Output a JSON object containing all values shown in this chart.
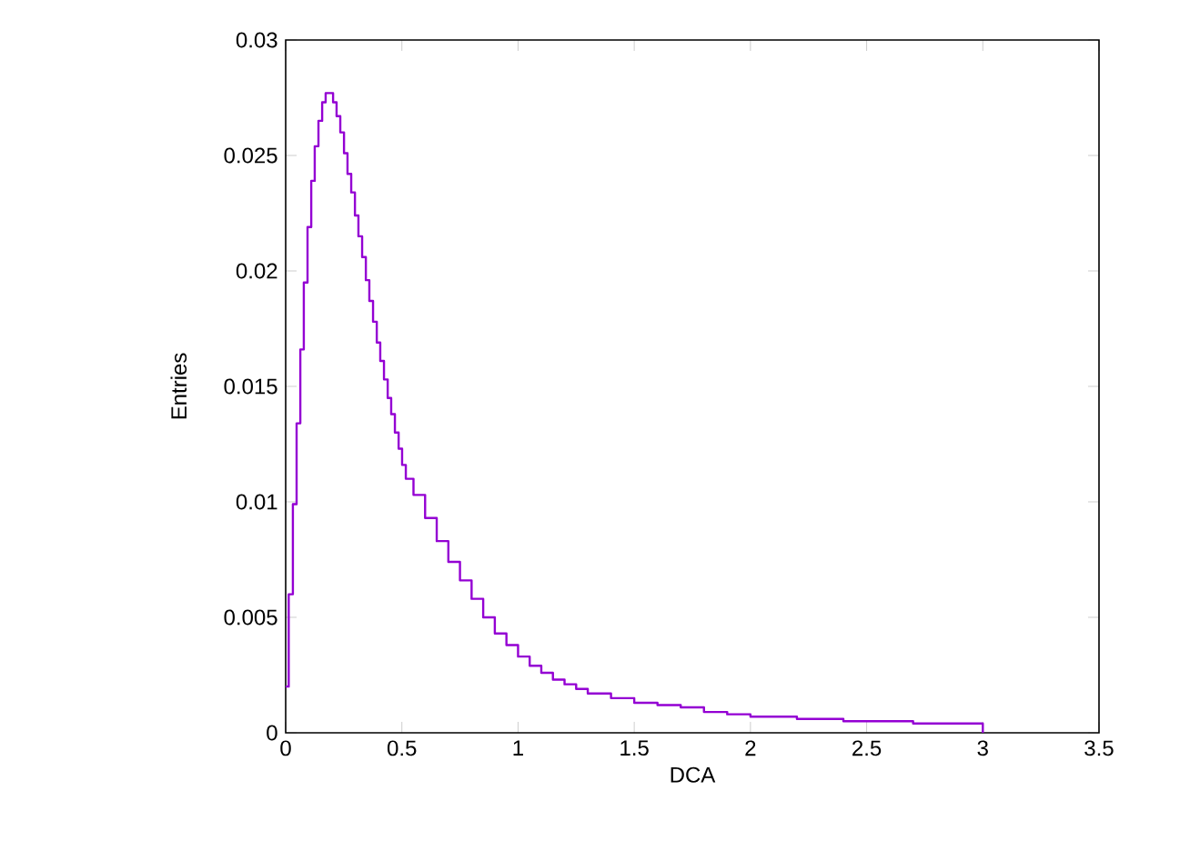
{
  "chart_data": {
    "type": "step",
    "xlabel": "DCA",
    "ylabel": "Entries",
    "x": [
      0,
      0.013,
      0.031,
      0.047,
      0.063,
      0.078,
      0.094,
      0.11,
      0.125,
      0.141,
      0.157,
      0.172,
      0.204,
      0.219,
      0.235,
      0.251,
      0.266,
      0.282,
      0.298,
      0.313,
      0.329,
      0.345,
      0.36,
      0.376,
      0.392,
      0.407,
      0.423,
      0.439,
      0.454,
      0.47,
      0.486,
      0.501,
      0.517,
      0.55,
      0.6,
      0.65,
      0.7,
      0.75,
      0.8,
      0.85,
      0.9,
      0.95,
      1.0,
      1.05,
      1.1,
      1.15,
      1.2,
      1.25,
      1.3,
      1.4,
      1.5,
      1.6,
      1.7,
      1.8,
      1.9,
      2.0,
      2.1,
      2.2,
      2.3,
      2.4,
      2.5,
      2.6,
      2.7,
      2.8,
      2.9,
      2.99,
      3.0
    ],
    "series": [
      {
        "color": "#9400d3",
        "values": [
          0.002,
          0.006,
          0.0099,
          0.0134,
          0.0166,
          0.0195,
          0.0219,
          0.0239,
          0.0254,
          0.0265,
          0.0273,
          0.0277,
          0.0273,
          0.0267,
          0.026,
          0.0251,
          0.0242,
          0.0234,
          0.0224,
          0.0215,
          0.0206,
          0.0196,
          0.0187,
          0.0178,
          0.0169,
          0.0161,
          0.0153,
          0.0145,
          0.0138,
          0.013,
          0.0123,
          0.0116,
          0.011,
          0.0103,
          0.0093,
          0.0083,
          0.0074,
          0.0066,
          0.0058,
          0.005,
          0.0043,
          0.0038,
          0.0033,
          0.0029,
          0.0026,
          0.0023,
          0.0021,
          0.0019,
          0.0017,
          0.0015,
          0.0013,
          0.0012,
          0.0011,
          0.0009,
          0.0008,
          0.0007,
          0.0007,
          0.0006,
          0.0006,
          0.0005,
          0.0005,
          0.0005,
          0.0004,
          0.0004,
          0.0004,
          0.0004,
          0
        ]
      }
    ],
    "xlim": [
      0,
      3.5
    ],
    "ylim": [
      0,
      0.03
    ],
    "xticks": [
      0,
      0.5,
      1,
      1.5,
      2,
      2.5,
      3,
      3.5
    ],
    "yticks": [
      0,
      0.005,
      0.01,
      0.015,
      0.02,
      0.025,
      0.03
    ],
    "grid": false
  }
}
